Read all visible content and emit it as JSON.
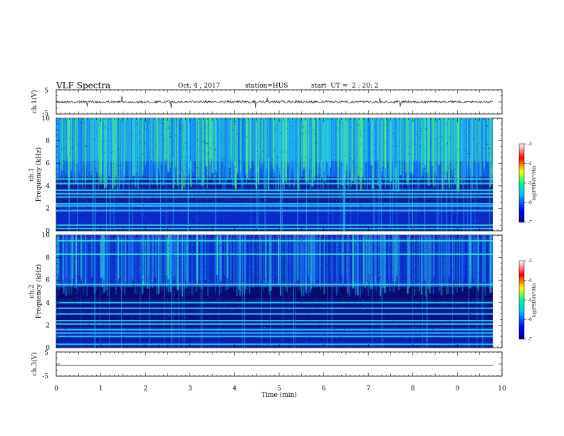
{
  "header": {
    "title": "VLF Spectra",
    "date": "Oct. 4 , 2017",
    "station": "station=HUS",
    "start": "start  UT =  2 : 20: 2"
  },
  "chart_data": {
    "type": "heatmap",
    "title": "VLF Spectra",
    "x": {
      "label": "Time  (min)",
      "range": [
        0,
        10
      ],
      "ticks": [
        "0",
        "1",
        "2",
        "3",
        "4",
        "5",
        "6",
        "7",
        "8",
        "9",
        "10"
      ]
    },
    "waveform_top": {
      "ylabel": "ch.1(V)",
      "ylim": [
        -5,
        5
      ],
      "ticks": [
        "5",
        "-5"
      ]
    },
    "spectrogram_1": {
      "ylabel_line1": "ch.1",
      "ylabel_line2": "Frequency  (kHz)",
      "ylim": [
        0,
        10
      ],
      "ticks": [
        "0",
        "2",
        "4",
        "6",
        "8",
        "10"
      ],
      "horizontal_lines_khz": [
        0.2,
        0.5,
        1.8,
        2.2,
        2.4,
        3.0,
        3.3,
        3.6,
        4.2,
        4.6
      ]
    },
    "spectrogram_2": {
      "ylabel_line1": "ch.2",
      "ylabel_line2": "Frequency  (kHz)",
      "ylim": [
        0,
        10
      ],
      "ticks": [
        "0",
        "2",
        "4",
        "6",
        "8",
        "10"
      ],
      "horizontal_lines_khz": [
        0.3,
        1.0,
        1.3,
        1.6,
        2.1,
        2.4,
        3.0,
        3.5,
        4.0,
        5.6,
        8.3,
        9.5
      ]
    },
    "waveform_bottom": {
      "ylabel": "ch.3(V)",
      "ylim": [
        -5,
        5
      ],
      "ticks": [
        "5",
        "-5"
      ]
    },
    "colorbar": {
      "label": "log(PSD)(V²/Hz)",
      "range": [
        -7,
        -3
      ],
      "ticks": [
        "-3",
        "-4",
        "-5",
        "-6",
        "-7"
      ],
      "colors": [
        "#000090",
        "#0000ff",
        "#00c0ff",
        "#00ff90",
        "#ffff00",
        "#ff0000",
        "#ffffff"
      ]
    }
  }
}
